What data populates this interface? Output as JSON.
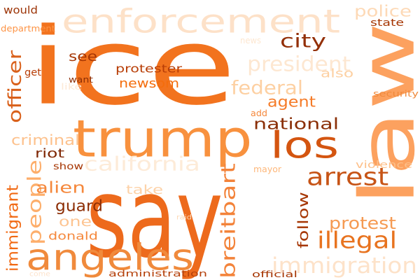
{
  "words": [
    {
      "text": "say",
      "color": "#ed6a1c",
      "rotated": false
    },
    {
      "text": "ice",
      "color": "#f2731e",
      "rotated": false
    },
    {
      "text": "law",
      "color": "#fca15f",
      "rotated": true
    },
    {
      "text": "enforcement",
      "color": "#fde1c8",
      "rotated": false
    },
    {
      "text": "trump",
      "color": "#f8913e",
      "rotated": false
    },
    {
      "text": "angeles",
      "color": "#f08a3c",
      "rotated": false
    },
    {
      "text": "los",
      "color": "#d45510",
      "rotated": false
    },
    {
      "text": "arrest",
      "color": "#c75416",
      "rotated": false
    },
    {
      "text": "illegal",
      "color": "#e8731f",
      "rotated": false
    },
    {
      "text": "immigration",
      "color": "#fde2c9",
      "rotated": false
    },
    {
      "text": "california",
      "color": "#fdebd8",
      "rotated": false
    },
    {
      "text": "national",
      "color": "#8a2f07",
      "rotated": false
    },
    {
      "text": "people",
      "color": "#fdae6b",
      "rotated": true
    },
    {
      "text": "officer",
      "color": "#d9601a",
      "rotated": true
    },
    {
      "text": "federal",
      "color": "#fdd0a2",
      "rotated": false
    },
    {
      "text": "agent",
      "color": "#f57b28",
      "rotated": false
    },
    {
      "text": "president",
      "color": "#fde7d1",
      "rotated": false
    },
    {
      "text": "city",
      "color": "#932f07",
      "rotated": false
    },
    {
      "text": "protest",
      "color": "#f59a52",
      "rotated": false
    },
    {
      "text": "breitbart",
      "color": "#f3833a",
      "rotated": true
    },
    {
      "text": "riot",
      "color": "#7f2704",
      "rotated": false
    },
    {
      "text": "criminal",
      "color": "#fdc18c",
      "rotated": false
    },
    {
      "text": "guard",
      "color": "#8c2d04",
      "rotated": false
    },
    {
      "text": "alien",
      "color": "#f5883c",
      "rotated": false
    },
    {
      "text": "newsom",
      "color": "#f46d0c",
      "rotated": false
    },
    {
      "text": "immigrant",
      "color": "#f16913",
      "rotated": true
    },
    {
      "text": "follow",
      "color": "#a63603",
      "rotated": true
    },
    {
      "text": "police",
      "color": "#fdd9b6",
      "rotated": false
    },
    {
      "text": "see",
      "color": "#a63603",
      "rotated": false
    },
    {
      "text": "one",
      "color": "#fdc491",
      "rotated": false
    },
    {
      "text": "take",
      "color": "#fdd2a8",
      "rotated": false
    },
    {
      "text": "protester",
      "color": "#b83e07",
      "rotated": false
    },
    {
      "text": "donald",
      "color": "#f5883c",
      "rotated": false
    },
    {
      "text": "also",
      "color": "#fdd0a2",
      "rotated": false
    },
    {
      "text": "administration",
      "color": "#b5410b",
      "rotated": false
    },
    {
      "text": "would",
      "color": "#9c3407",
      "rotated": false
    },
    {
      "text": "state",
      "color": "#a63603",
      "rotated": false
    },
    {
      "text": "violence",
      "color": "#fdc08a",
      "rotated": false
    },
    {
      "text": "show",
      "color": "#a63603",
      "rotated": false
    },
    {
      "text": "official",
      "color": "#a63603",
      "rotated": false
    },
    {
      "text": "security",
      "color": "#f08a3c",
      "rotated": false
    },
    {
      "text": "department",
      "color": "#fd9446",
      "rotated": false
    },
    {
      "text": "want",
      "color": "#8c2d04",
      "rotated": false
    },
    {
      "text": "get",
      "color": "#b83e07",
      "rotated": false
    },
    {
      "text": "mayor",
      "color": "#fdb77a",
      "rotated": false
    },
    {
      "text": "add",
      "color": "#f5883c",
      "rotated": false
    },
    {
      "text": "like",
      "color": "#fde9d6",
      "rotated": false
    },
    {
      "text": "news",
      "color": "#fde7d1",
      "rotated": false
    },
    {
      "text": "raid",
      "color": "#fdd9b6",
      "rotated": false
    },
    {
      "text": "come",
      "color": "#fde3cc",
      "rotated": false
    }
  ]
}
